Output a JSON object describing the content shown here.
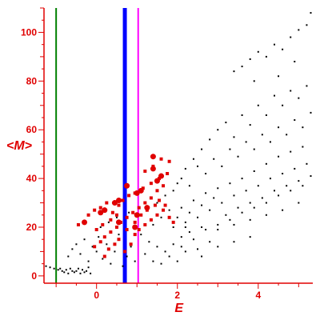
{
  "chart_data": {
    "type": "scatter",
    "title": "",
    "xlabel": "E",
    "ylabel": "<M>",
    "xlim": [
      -1.3,
      5.35
    ],
    "ylim": [
      -3,
      110
    ],
    "x_ticks": [
      {
        "value": 0,
        "label": "0"
      },
      {
        "value": 2,
        "label": "2"
      },
      {
        "value": 4,
        "label": "4"
      }
    ],
    "y_ticks": [
      {
        "value": 0,
        "label": "0"
      },
      {
        "value": 20,
        "label": "20"
      },
      {
        "value": 40,
        "label": "40"
      },
      {
        "value": 60,
        "label": "60"
      },
      {
        "value": 80,
        "label": "80"
      },
      {
        "value": 100,
        "label": "100"
      }
    ],
    "grid": false,
    "legend": "none",
    "colors": {
      "axis": "#e00000",
      "black_points": "#000000",
      "red_points": "#e00000",
      "green_line": "#008000",
      "blue_line": "#0000ff",
      "magenta_line": "#ff00ff"
    },
    "vertical_lines": [
      {
        "x": -1.0,
        "color": "#008000"
      },
      {
        "x": 0.7,
        "color": "#0000ff"
      },
      {
        "x": 1.03,
        "color": "#ff00ff"
      }
    ],
    "series": [
      {
        "color": "#000000",
        "marker": "small-dot",
        "points": [
          [
            -1.25,
            4
          ],
          [
            -1.15,
            3.5
          ],
          [
            -1.05,
            3
          ],
          [
            -0.95,
            2.5
          ],
          [
            -0.9,
            3
          ],
          [
            -0.85,
            2
          ],
          [
            -0.8,
            1.5
          ],
          [
            -0.75,
            2.5
          ],
          [
            -0.7,
            1
          ],
          [
            -0.65,
            3
          ],
          [
            -0.6,
            2
          ],
          [
            -0.55,
            1.5
          ],
          [
            -0.5,
            2
          ],
          [
            -0.45,
            3
          ],
          [
            -0.4,
            1
          ],
          [
            -0.35,
            2.5
          ],
          [
            -0.3,
            1.5
          ],
          [
            -0.25,
            2
          ],
          [
            -0.2,
            3.5
          ],
          [
            -0.15,
            1
          ],
          [
            -0.7,
            8
          ],
          [
            -0.6,
            11
          ],
          [
            -0.5,
            13
          ],
          [
            -0.4,
            9
          ],
          [
            -0.3,
            15
          ],
          [
            -0.2,
            6
          ],
          [
            -0.1,
            12
          ],
          [
            0.0,
            10
          ],
          [
            0.05,
            16
          ],
          [
            0.15,
            7
          ],
          [
            0.25,
            13
          ],
          [
            0.35,
            5
          ],
          [
            0.45,
            10
          ],
          [
            0.55,
            17
          ],
          [
            0.65,
            4
          ],
          [
            0.75,
            8
          ],
          [
            0.85,
            12
          ],
          [
            0.95,
            6
          ],
          [
            0.1,
            20
          ],
          [
            0.3,
            22
          ],
          [
            0.5,
            24
          ],
          [
            0.8,
            26
          ],
          [
            1.1,
            17
          ],
          [
            1.3,
            14
          ],
          [
            1.5,
            12
          ],
          [
            1.7,
            10
          ],
          [
            1.9,
            13
          ],
          [
            2.1,
            16
          ],
          [
            2.3,
            18
          ],
          [
            2.5,
            11
          ],
          [
            2.8,
            14
          ],
          [
            1.9,
            20
          ],
          [
            2.0,
            24
          ],
          [
            2.1,
            28
          ],
          [
            2.2,
            22
          ],
          [
            2.3,
            26
          ],
          [
            2.4,
            31
          ],
          [
            2.5,
            24
          ],
          [
            2.6,
            29
          ],
          [
            2.7,
            34
          ],
          [
            2.8,
            27
          ],
          [
            2.9,
            32
          ],
          [
            3.0,
            36
          ],
          [
            3.1,
            30
          ],
          [
            3.2,
            25
          ],
          [
            3.3,
            38
          ],
          [
            3.4,
            33
          ],
          [
            3.5,
            28
          ],
          [
            3.6,
            40
          ],
          [
            3.7,
            35
          ],
          [
            3.8,
            30
          ],
          [
            3.9,
            43
          ],
          [
            4.0,
            37
          ],
          [
            4.1,
            32
          ],
          [
            4.2,
            46
          ],
          [
            4.3,
            40
          ],
          [
            4.4,
            35
          ],
          [
            4.5,
            49
          ],
          [
            4.6,
            42
          ],
          [
            4.7,
            37
          ],
          [
            4.8,
            51
          ],
          [
            4.9,
            44
          ],
          [
            5.0,
            39
          ],
          [
            5.1,
            53
          ],
          [
            5.2,
            46
          ],
          [
            5.3,
            41
          ],
          [
            2.0,
            38
          ],
          [
            2.2,
            44
          ],
          [
            2.4,
            48
          ],
          [
            2.6,
            52
          ],
          [
            2.8,
            56
          ],
          [
            3.0,
            60
          ],
          [
            3.2,
            63
          ],
          [
            3.4,
            57
          ],
          [
            3.6,
            66
          ],
          [
            3.8,
            62
          ],
          [
            4.0,
            70
          ],
          [
            4.2,
            66
          ],
          [
            4.4,
            74
          ],
          [
            4.6,
            70
          ],
          [
            4.8,
            76
          ],
          [
            5.0,
            73
          ],
          [
            5.2,
            78
          ],
          [
            3.4,
            84
          ],
          [
            3.6,
            86
          ],
          [
            3.8,
            89
          ],
          [
            4.0,
            92
          ],
          [
            4.2,
            90
          ],
          [
            4.4,
            95
          ],
          [
            4.6,
            93
          ],
          [
            4.8,
            98
          ],
          [
            5.0,
            101
          ],
          [
            5.2,
            103
          ],
          [
            5.3,
            108
          ],
          [
            4.9,
            88
          ],
          [
            4.5,
            82
          ],
          [
            3.9,
            80
          ],
          [
            2.1,
            12
          ],
          [
            2.4,
            15
          ],
          [
            2.7,
            19
          ],
          [
            3.0,
            21
          ],
          [
            3.3,
            23
          ],
          [
            3.6,
            26
          ],
          [
            3.9,
            28
          ],
          [
            4.2,
            30
          ],
          [
            4.5,
            33
          ],
          [
            4.8,
            35
          ],
          [
            5.1,
            37
          ],
          [
            1.4,
            21
          ],
          [
            1.6,
            24
          ],
          [
            1.8,
            27
          ],
          [
            1.5,
            30
          ],
          [
            1.7,
            33
          ],
          [
            1.9,
            35
          ],
          [
            2.1,
            40
          ],
          [
            2.3,
            37
          ],
          [
            2.5,
            45
          ],
          [
            2.7,
            42
          ],
          [
            2.9,
            48
          ],
          [
            3.1,
            45
          ],
          [
            3.3,
            52
          ],
          [
            3.5,
            49
          ],
          [
            3.7,
            55
          ],
          [
            3.9,
            52
          ],
          [
            4.1,
            58
          ],
          [
            4.3,
            55
          ],
          [
            4.5,
            61
          ],
          [
            4.7,
            58
          ],
          [
            4.9,
            64
          ],
          [
            5.1,
            61
          ],
          [
            5.3,
            67
          ],
          [
            2.2,
            20
          ],
          [
            2.6,
            20
          ],
          [
            3.0,
            19
          ],
          [
            3.4,
            21
          ],
          [
            3.8,
            23
          ],
          [
            4.2,
            25
          ],
          [
            4.6,
            27
          ],
          [
            5.0,
            30
          ],
          [
            1.2,
            9
          ],
          [
            1.4,
            6
          ],
          [
            1.6,
            5
          ],
          [
            1.8,
            8
          ],
          [
            2.0,
            6
          ],
          [
            2.2,
            10
          ],
          [
            2.6,
            8
          ],
          [
            3.0,
            12
          ],
          [
            3.4,
            14
          ],
          [
            3.8,
            16
          ]
        ]
      },
      {
        "color": "#e00000",
        "marker": "square",
        "points": [
          [
            -0.45,
            21
          ],
          [
            -0.3,
            22
          ],
          [
            -0.2,
            25
          ],
          [
            -0.05,
            27
          ],
          [
            0.1,
            28
          ],
          [
            0.25,
            30
          ],
          [
            0.4,
            26
          ],
          [
            0.55,
            29
          ],
          [
            0.65,
            31
          ],
          [
            0.8,
            33
          ],
          [
            0.95,
            34
          ],
          [
            1.15,
            36
          ],
          [
            1.35,
            38
          ],
          [
            1.55,
            40
          ],
          [
            1.75,
            42
          ],
          [
            1.4,
            45
          ],
          [
            1.6,
            48
          ],
          [
            1.8,
            47
          ],
          [
            1.2,
            43
          ],
          [
            -0.05,
            12
          ],
          [
            0.1,
            14
          ],
          [
            0.2,
            16
          ],
          [
            0.35,
            18
          ],
          [
            0.5,
            20
          ],
          [
            0.6,
            22
          ],
          [
            0.75,
            24
          ],
          [
            0.9,
            26
          ],
          [
            1.05,
            28
          ],
          [
            1.2,
            30
          ],
          [
            1.35,
            32
          ],
          [
            1.5,
            35
          ],
          [
            1.65,
            37
          ],
          [
            0.2,
            8
          ],
          [
            0.3,
            11
          ],
          [
            0.45,
            13
          ],
          [
            0.55,
            15
          ],
          [
            0.7,
            10
          ],
          [
            0.85,
            13
          ],
          [
            0.95,
            17
          ],
          [
            1.05,
            19
          ],
          [
            1.2,
            21
          ],
          [
            1.35,
            23
          ],
          [
            1.5,
            25
          ],
          [
            1.65,
            27
          ],
          [
            1.8,
            24
          ],
          [
            1.9,
            22
          ],
          [
            1.7,
            29
          ],
          [
            0.0,
            19
          ],
          [
            0.15,
            21
          ],
          [
            0.35,
            23
          ],
          [
            0.5,
            25
          ],
          [
            1.1,
            25
          ],
          [
            1.25,
            27
          ],
          [
            1.45,
            29
          ],
          [
            1.55,
            31
          ],
          [
            0.95,
            22
          ],
          [
            0.75,
            19
          ]
        ]
      },
      {
        "color": "#e00000",
        "marker": "large-dot",
        "points": [
          [
            -0.3,
            22
          ],
          [
            0.1,
            26
          ],
          [
            0.2,
            27
          ],
          [
            0.45,
            30
          ],
          [
            0.55,
            31
          ],
          [
            1.0,
            34
          ],
          [
            1.1,
            35
          ],
          [
            1.5,
            39
          ],
          [
            1.6,
            41
          ],
          [
            1.4,
            44
          ],
          [
            0.75,
            37
          ],
          [
            1.0,
            25
          ],
          [
            0.55,
            22
          ],
          [
            1.25,
            28
          ],
          [
            0.95,
            20
          ],
          [
            1.4,
            49
          ]
        ]
      }
    ]
  }
}
